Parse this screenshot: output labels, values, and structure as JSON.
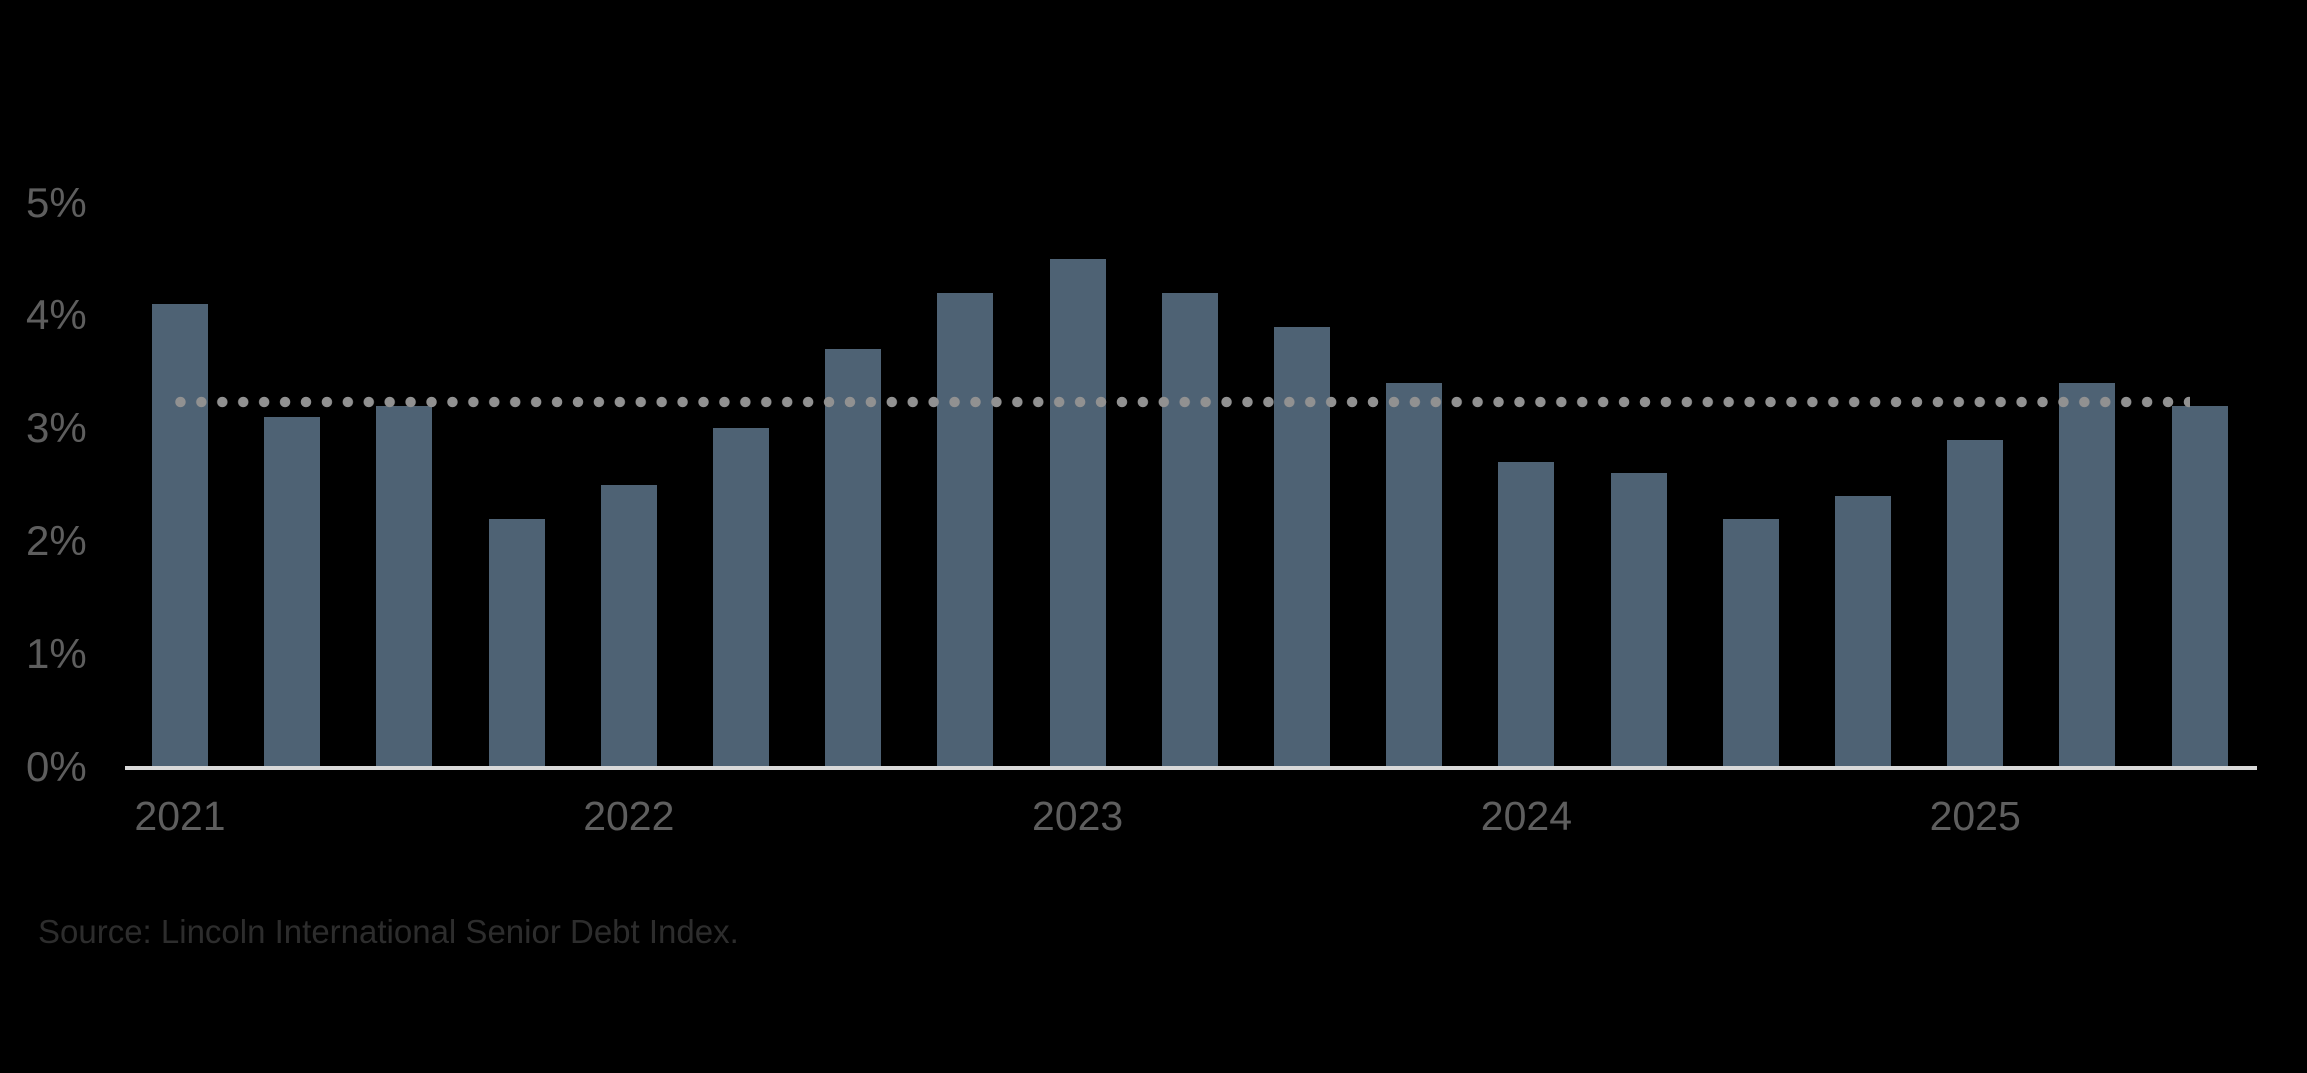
{
  "chart_data": {
    "type": "bar",
    "title": "",
    "categories": [
      "2021 Q1",
      "2021 Q2",
      "2021 Q3",
      "2021 Q4",
      "2022 Q1",
      "2022 Q2",
      "2022 Q3",
      "2022 Q4",
      "2023 Q1",
      "2023 Q2",
      "2023 Q3",
      "2023 Q4",
      "2024 Q1",
      "2024 Q2",
      "2024 Q3",
      "2024 Q4",
      "2025 Q1",
      "2025 Q2",
      "2025 Q3"
    ],
    "values": [
      4.1,
      3.1,
      3.2,
      2.2,
      2.5,
      3.0,
      3.7,
      4.2,
      4.5,
      4.2,
      3.9,
      3.4,
      2.7,
      2.6,
      2.2,
      2.4,
      2.9,
      3.4,
      3.2
    ],
    "unit": "%",
    "xlabel": "",
    "ylabel": "",
    "ylim": [
      0,
      5
    ],
    "y_tick_labels": [
      "0%",
      "1%",
      "2%",
      "3%",
      "4%",
      "5%"
    ],
    "y_tick_values": [
      0,
      1,
      2,
      3,
      4,
      5
    ],
    "x_year_labels": [
      "2021",
      "2022",
      "2023",
      "2024",
      "2025"
    ],
    "average_line": {
      "value": 3.23,
      "style": "dotted"
    },
    "grid": false,
    "legend_position": "none"
  },
  "source_note": "Source: Lincoln International Senior Debt Index.",
  "colors": {
    "background": "#000000",
    "bar": "#4e6274",
    "average_dot": "#919191",
    "axis_line": "#d9d9d9",
    "tick_label": "#5e5e5e",
    "source_text": "#2d2d2d"
  }
}
